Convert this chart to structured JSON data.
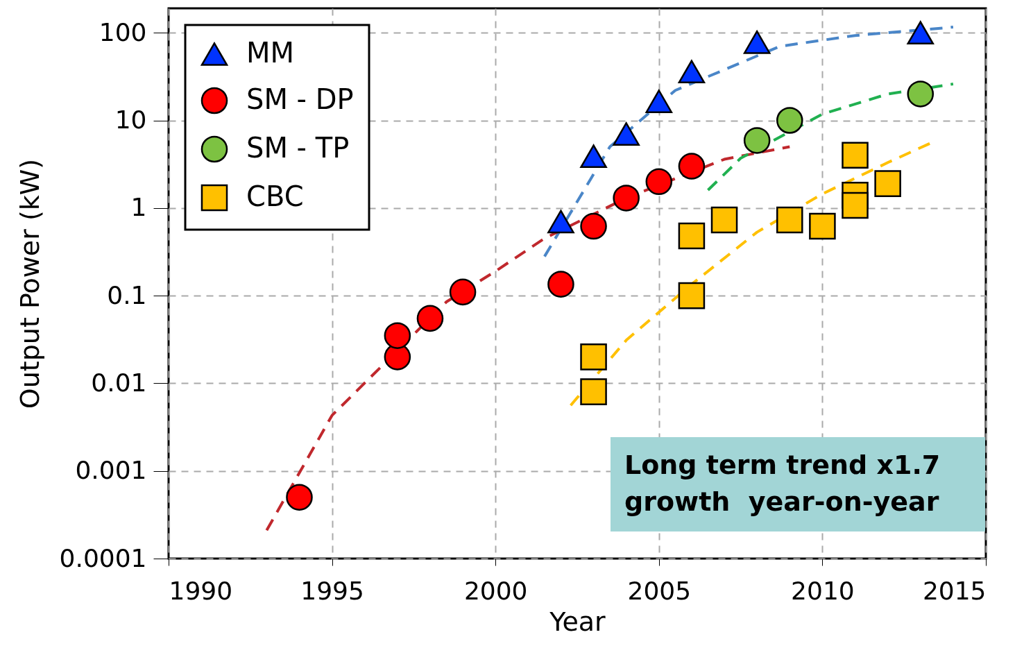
{
  "chart_data": {
    "type": "scatter",
    "xlabel": "Year",
    "ylabel": "Output Power (kW)",
    "log": "y",
    "grid": true,
    "legend": "top left",
    "xlim": [
      1990,
      2015
    ],
    "xticks": [
      1990,
      1995,
      2000,
      2005,
      2010,
      2015
    ],
    "ylim": [
      0.0001,
      190
    ],
    "yticks": [
      0.0001,
      0.001,
      0.01,
      0.1,
      1,
      10,
      100
    ],
    "annotations": [
      "Long term trend x1.7 growth  year-on-year"
    ],
    "series": [
      {
        "name": "MM",
        "marker": "triangle",
        "color": "#0033ff",
        "x": [
          2002,
          2003,
          2004,
          2005,
          2006,
          2008,
          2013
        ],
        "values": [
          0.7,
          3.9,
          7,
          16.5,
          36,
          78,
          100
        ]
      },
      {
        "name": "SM - DP",
        "marker": "circle",
        "color": "#ff0000",
        "x": [
          1994,
          1997,
          1997,
          1998,
          1999,
          2002,
          2003,
          2004,
          2005,
          2006
        ],
        "values": [
          0.0005,
          0.02,
          0.035,
          0.055,
          0.11,
          0.135,
          0.62,
          1.3,
          2,
          3
        ]
      },
      {
        "name": "SM - TP",
        "marker": "circle",
        "color": "#7dc242",
        "x": [
          2008,
          2009,
          2013
        ],
        "values": [
          5.9,
          10,
          20
        ]
      },
      {
        "name": "CBC",
        "marker": "square",
        "color": "#ffc000",
        "x": [
          2003,
          2003,
          2006,
          2006,
          2007,
          2009,
          2010,
          2011,
          2011,
          2011,
          2012
        ],
        "values": [
          0.02,
          0.008,
          0.48,
          0.1,
          0.73,
          0.73,
          0.62,
          4,
          1.4,
          1.07,
          1.9
        ]
      },
      {
        "type": "line",
        "line_style": "dashed",
        "color": "#4a86c8",
        "x": [
          2001.5,
          2003.5,
          2005.5,
          2008.7,
          2011,
          2014
        ],
        "values": [
          0.28,
          5,
          22,
          70,
          93,
          116
        ]
      },
      {
        "type": "line",
        "line_style": "dashed",
        "color": "#c0282d",
        "x": [
          1993,
          1995,
          1998.5,
          2000,
          2001.5,
          2004,
          2007,
          2009
        ],
        "values": [
          0.00021,
          0.0043,
          0.085,
          0.19,
          0.45,
          1.3,
          3.6,
          5
        ]
      },
      {
        "type": "line",
        "line_style": "dashed",
        "color": "#20b050",
        "x": [
          2006.5,
          2007.5,
          2010,
          2012,
          2014
        ],
        "values": [
          1.6,
          3.7,
          11.8,
          20,
          26
        ]
      },
      {
        "type": "line",
        "line_style": "dashed",
        "color": "#ffc000",
        "x": [
          2002.3,
          2004,
          2006,
          2008,
          2010,
          2012,
          2013.4
        ],
        "values": [
          0.0056,
          0.031,
          0.135,
          0.53,
          1.45,
          3.3,
          5.7
        ]
      }
    ]
  }
}
